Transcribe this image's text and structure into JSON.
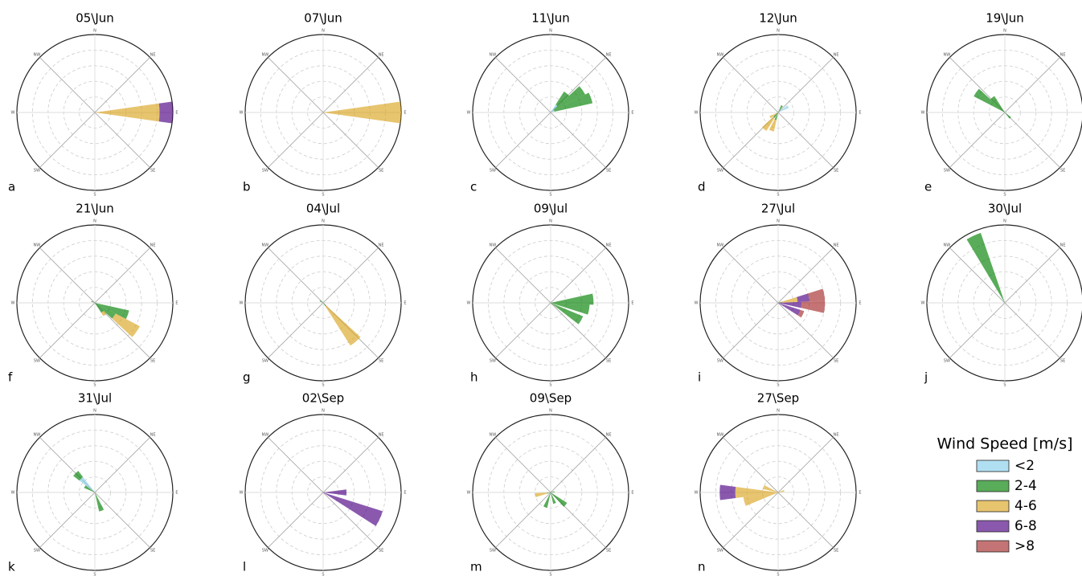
{
  "legend": {
    "title": "Wind Speed [m/s]",
    "items": [
      {
        "name": "<2",
        "color": "#87ceeb"
      },
      {
        "name": "2-4",
        "color": "#008000"
      },
      {
        "name": "4-6",
        "color": "#daa520"
      },
      {
        "name": "6-8",
        "color": "#4b0082"
      },
      {
        "name": ">8",
        "color": "#a52a2a"
      }
    ]
  },
  "directions": [
    "N",
    "NE",
    "E",
    "SE",
    "S",
    "SW",
    "W",
    "NW"
  ],
  "chart_data": [
    {
      "type": "windrose",
      "title": "05\\Jun",
      "panel": "a",
      "rlim": [
        0,
        100
      ],
      "sector_width": 16,
      "sectors": [
        {
          "dir": 90,
          "values": [
            0,
            0,
            83,
            17,
            0
          ]
        }
      ]
    },
    {
      "type": "windrose",
      "title": "07\\Jun",
      "panel": "b",
      "rlim": [
        0,
        100
      ],
      "sector_width": 16,
      "sectors": [
        {
          "dir": 90,
          "values": [
            0,
            0,
            100,
            0,
            0
          ]
        }
      ]
    },
    {
      "type": "windrose",
      "title": "11\\Jun",
      "panel": "c",
      "rlim": [
        0,
        100
      ],
      "sector_width": 15,
      "sectors": [
        {
          "dir": 40,
          "values": [
            12,
            20,
            0,
            0,
            0
          ]
        },
        {
          "dir": 55,
          "values": [
            5,
            45,
            0,
            0,
            0
          ]
        },
        {
          "dir": 70,
          "values": [
            5,
            50,
            0,
            0,
            0
          ]
        }
      ]
    },
    {
      "type": "windrose",
      "title": "12\\Jun",
      "panel": "d",
      "rlim": [
        0,
        100
      ],
      "sector_width": 15,
      "sectors": [
        {
          "dir": 60,
          "values": [
            15,
            0,
            0,
            0,
            0
          ]
        },
        {
          "dir": 30,
          "values": [
            0,
            10,
            0,
            0,
            0
          ]
        },
        {
          "dir": 200,
          "values": [
            0,
            10,
            15,
            0,
            0
          ]
        },
        {
          "dir": 220,
          "values": [
            0,
            8,
            20,
            0,
            0
          ]
        },
        {
          "dir": 240,
          "values": [
            0,
            0,
            12,
            0,
            0
          ]
        }
      ]
    },
    {
      "type": "windrose",
      "title": "19\\Jun",
      "panel": "e",
      "rlim": [
        0,
        100
      ],
      "sector_width": 15,
      "sectors": [
        {
          "dir": 305,
          "values": [
            0,
            45,
            0,
            0,
            0
          ]
        },
        {
          "dir": 320,
          "values": [
            0,
            25,
            0,
            0,
            0
          ]
        },
        {
          "dir": 135,
          "values": [
            0,
            10,
            0,
            0,
            0
          ]
        }
      ]
    },
    {
      "type": "windrose",
      "title": "21\\Jun",
      "panel": "f",
      "rlim": [
        0,
        100
      ],
      "sector_width": 15,
      "sectors": [
        {
          "dir": 110,
          "values": [
            0,
            45,
            0,
            0,
            0
          ]
        },
        {
          "dir": 125,
          "values": [
            0,
            30,
            35,
            0,
            0
          ]
        },
        {
          "dir": 140,
          "values": [
            0,
            15,
            5,
            0,
            0
          ]
        },
        {
          "dir": 295,
          "values": [
            0,
            5,
            0,
            0,
            0
          ]
        }
      ]
    },
    {
      "type": "windrose",
      "title": "04\\Jul",
      "panel": "g",
      "rlim": [
        0,
        100
      ],
      "sector_width": 15,
      "sectors": [
        {
          "dir": 140,
          "values": [
            0,
            5,
            60,
            0,
            0
          ]
        },
        {
          "dir": 300,
          "values": [
            0,
            5,
            0,
            0,
            0
          ]
        }
      ]
    },
    {
      "type": "windrose",
      "title": "09\\Jul",
      "panel": "h",
      "rlim": [
        0,
        100
      ],
      "sector_width": 15,
      "sectors": [
        {
          "dir": 85,
          "values": [
            0,
            55,
            0,
            0,
            0
          ]
        },
        {
          "dir": 100,
          "values": [
            0,
            50,
            0,
            0,
            0
          ]
        },
        {
          "dir": 120,
          "values": [
            0,
            45,
            0,
            0,
            0
          ]
        }
      ]
    },
    {
      "type": "windrose",
      "title": "27\\Jul",
      "panel": "i",
      "rlim": [
        0,
        100
      ],
      "sector_width": 15,
      "sectors": [
        {
          "dir": 80,
          "values": [
            0,
            5,
            20,
            15,
            20
          ]
        },
        {
          "dir": 95,
          "values": [
            0,
            0,
            0,
            30,
            30
          ]
        },
        {
          "dir": 115,
          "values": [
            0,
            0,
            0,
            30,
            5
          ]
        }
      ]
    },
    {
      "type": "windrose",
      "title": "30\\Jul",
      "panel": "j",
      "rlim": [
        0,
        100
      ],
      "sector_width": 12,
      "sectors": [
        {
          "dir": 335,
          "values": [
            0,
            95,
            0,
            0,
            0
          ]
        }
      ]
    },
    {
      "type": "windrose",
      "title": "31\\Jul",
      "panel": "k",
      "rlim": [
        0,
        100
      ],
      "sector_width": 15,
      "sectors": [
        {
          "dir": 315,
          "values": [
            25,
            10,
            0,
            0,
            0
          ]
        },
        {
          "dir": 300,
          "values": [
            0,
            15,
            0,
            0,
            0
          ]
        },
        {
          "dir": 160,
          "values": [
            0,
            25,
            0,
            0,
            0
          ]
        }
      ]
    },
    {
      "type": "windrose",
      "title": "02\\Sep",
      "panel": "l",
      "rlim": [
        0,
        100
      ],
      "sector_width": 15,
      "sectors": [
        {
          "dir": 115,
          "values": [
            0,
            0,
            0,
            80,
            0
          ]
        },
        {
          "dir": 90,
          "values": [
            0,
            0,
            0,
            30,
            0
          ]
        }
      ]
    },
    {
      "type": "windrose",
      "title": "09\\Sep",
      "panel": "m",
      "rlim": [
        0,
        100
      ],
      "sector_width": 15,
      "sectors": [
        {
          "dir": 260,
          "values": [
            0,
            5,
            15,
            0,
            0
          ]
        },
        {
          "dir": 200,
          "values": [
            0,
            20,
            0,
            0,
            0
          ]
        },
        {
          "dir": 130,
          "values": [
            0,
            25,
            0,
            0,
            0
          ]
        },
        {
          "dir": 160,
          "values": [
            0,
            15,
            0,
            0,
            0
          ]
        },
        {
          "dir": 80,
          "values": [
            0,
            5,
            0,
            0,
            0
          ]
        }
      ]
    },
    {
      "type": "windrose",
      "title": "27\\Sep",
      "panel": "n",
      "rlim": [
        0,
        100
      ],
      "sector_width": 15,
      "sectors": [
        {
          "dir": 270,
          "values": [
            0,
            0,
            55,
            20,
            0
          ]
        },
        {
          "dir": 255,
          "values": [
            0,
            0,
            45,
            0,
            0
          ]
        },
        {
          "dir": 75,
          "values": [
            0,
            0,
            8,
            0,
            0
          ]
        },
        {
          "dir": 290,
          "values": [
            0,
            0,
            20,
            0,
            0
          ]
        }
      ]
    }
  ]
}
